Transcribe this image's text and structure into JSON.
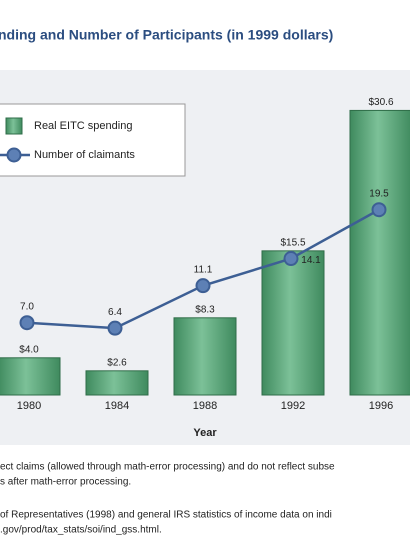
{
  "chart_data": {
    "type": "combo",
    "title": "nding and Number of Participants (in 1999 dollars)",
    "xlabel": "Year",
    "categories": [
      "1980",
      "1984",
      "1988",
      "1992",
      "1996"
    ],
    "legend": "upper left",
    "series": [
      {
        "name": "Real EITC spending",
        "type": "bar",
        "color": "#5da87c",
        "values": [
          4.0,
          2.6,
          8.3,
          15.5,
          30.6
        ],
        "value_labels": [
          "$4.0",
          "$2.6",
          "$8.3",
          "$15.5",
          "$30.6"
        ]
      },
      {
        "name": "Number of claimants",
        "type": "line",
        "color": "#3d5f94",
        "values": [
          7.0,
          6.4,
          11.1,
          14.1,
          19.5
        ],
        "value_labels": [
          "7.0",
          "6.4",
          "11.1",
          "14.1",
          "19.5"
        ]
      }
    ]
  },
  "notes": [
    "ect claims (allowed through math-error processing) and do not reflect subse",
    "s after math-error processing.",
    "of Representatives (1998) and general IRS statistics of income data on indi",
    ".gov/prod/tax_stats/soi/ind_gss.html."
  ]
}
